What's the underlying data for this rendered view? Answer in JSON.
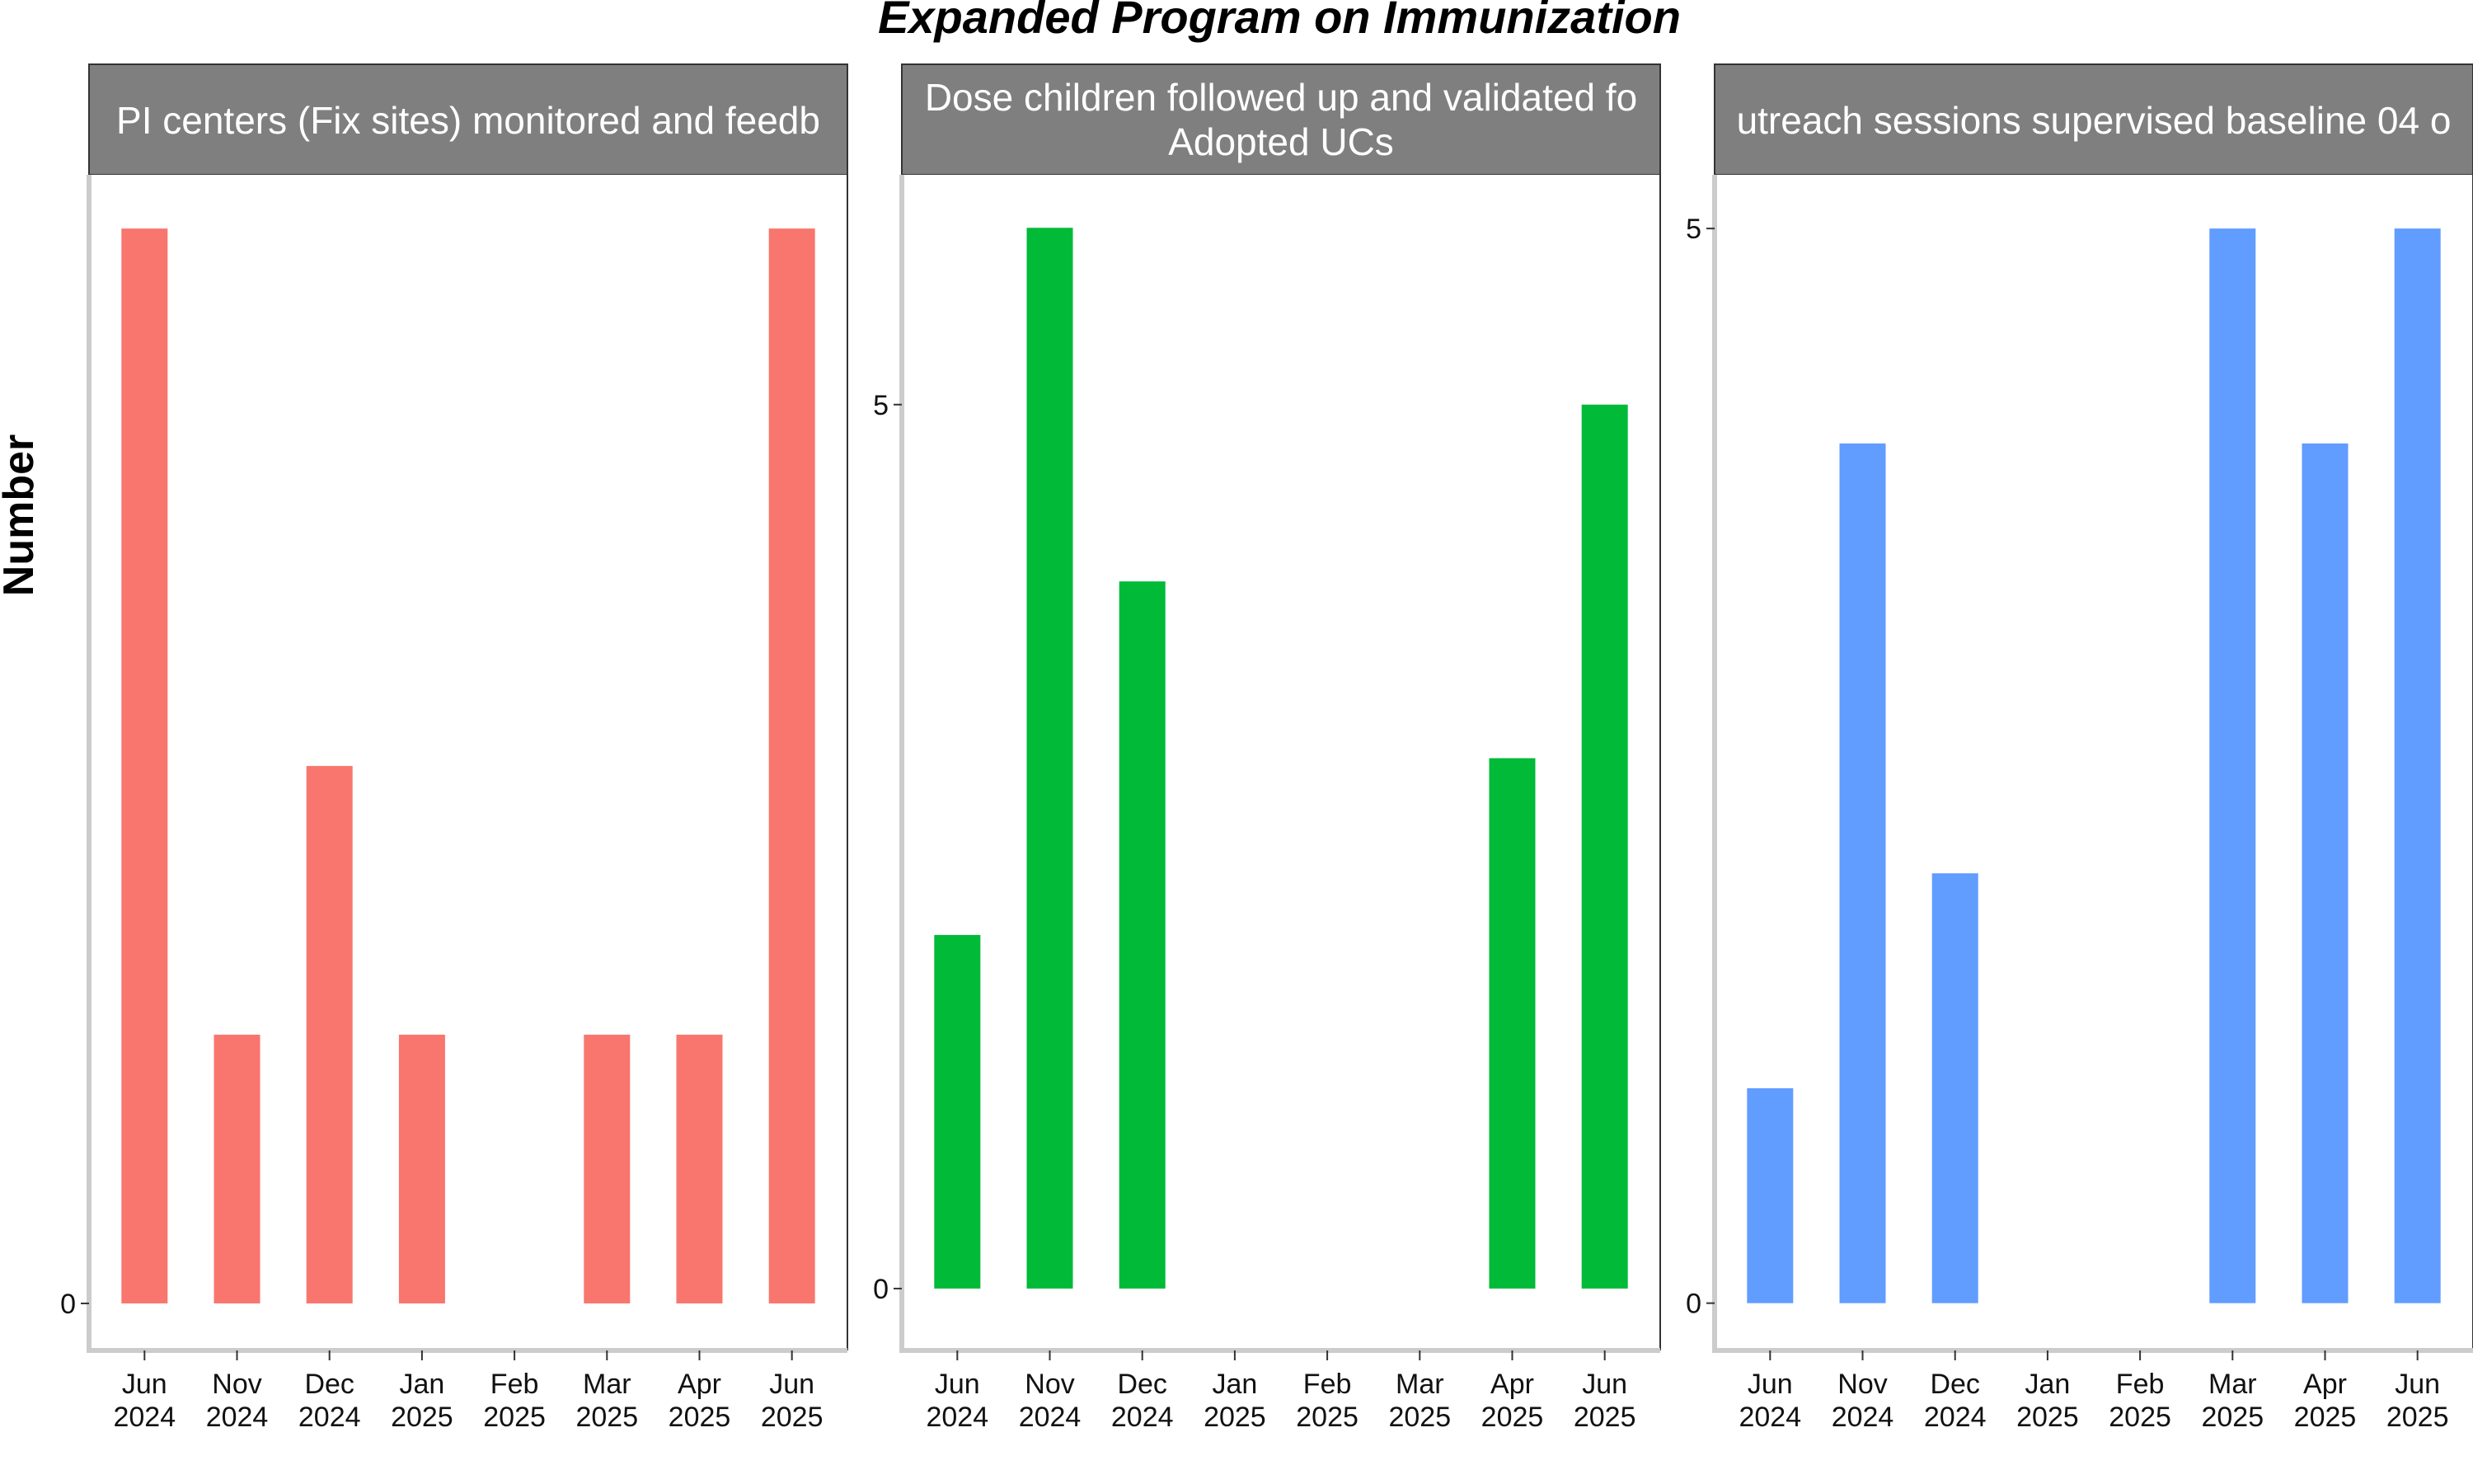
{
  "chart_data": {
    "type": "bar",
    "title": "Expanded Program on Immunization",
    "ylabel": "Number",
    "xlabel": "",
    "grid": false,
    "legend": "none",
    "categories": [
      [
        "Jun",
        "2024"
      ],
      [
        "Nov",
        "2024"
      ],
      [
        "Dec",
        "2024"
      ],
      [
        "Jan",
        "2025"
      ],
      [
        "Feb",
        "2025"
      ],
      [
        "Mar",
        "2025"
      ],
      [
        "Apr",
        "2025"
      ],
      [
        "Jun",
        "2025"
      ]
    ],
    "panels": [
      {
        "strip": [
          "PI centers (Fix sites) monitored and feedb"
        ],
        "color": "#F8766D",
        "values": [
          8,
          2,
          4,
          2,
          0,
          2,
          2,
          8
        ],
        "ylim": [
          -0.35,
          8.4
        ],
        "y_ticks": [
          0
        ]
      },
      {
        "strip": [
          "Dose children followed up and validated fo",
          "Adopted UCs"
        ],
        "color": "#00BA38",
        "values": [
          2,
          6,
          4,
          0,
          0,
          0,
          3,
          5
        ],
        "ylim": [
          -0.35,
          6.3
        ],
        "y_ticks": [
          0,
          5
        ]
      },
      {
        "strip": [
          "utreach sessions supervised baseline 04 o"
        ],
        "color": "#619CFF",
        "values": [
          1,
          4,
          2,
          0,
          0,
          5,
          4,
          5
        ],
        "ylim": [
          -0.22,
          5.25
        ],
        "y_ticks": [
          0,
          5
        ]
      }
    ]
  }
}
